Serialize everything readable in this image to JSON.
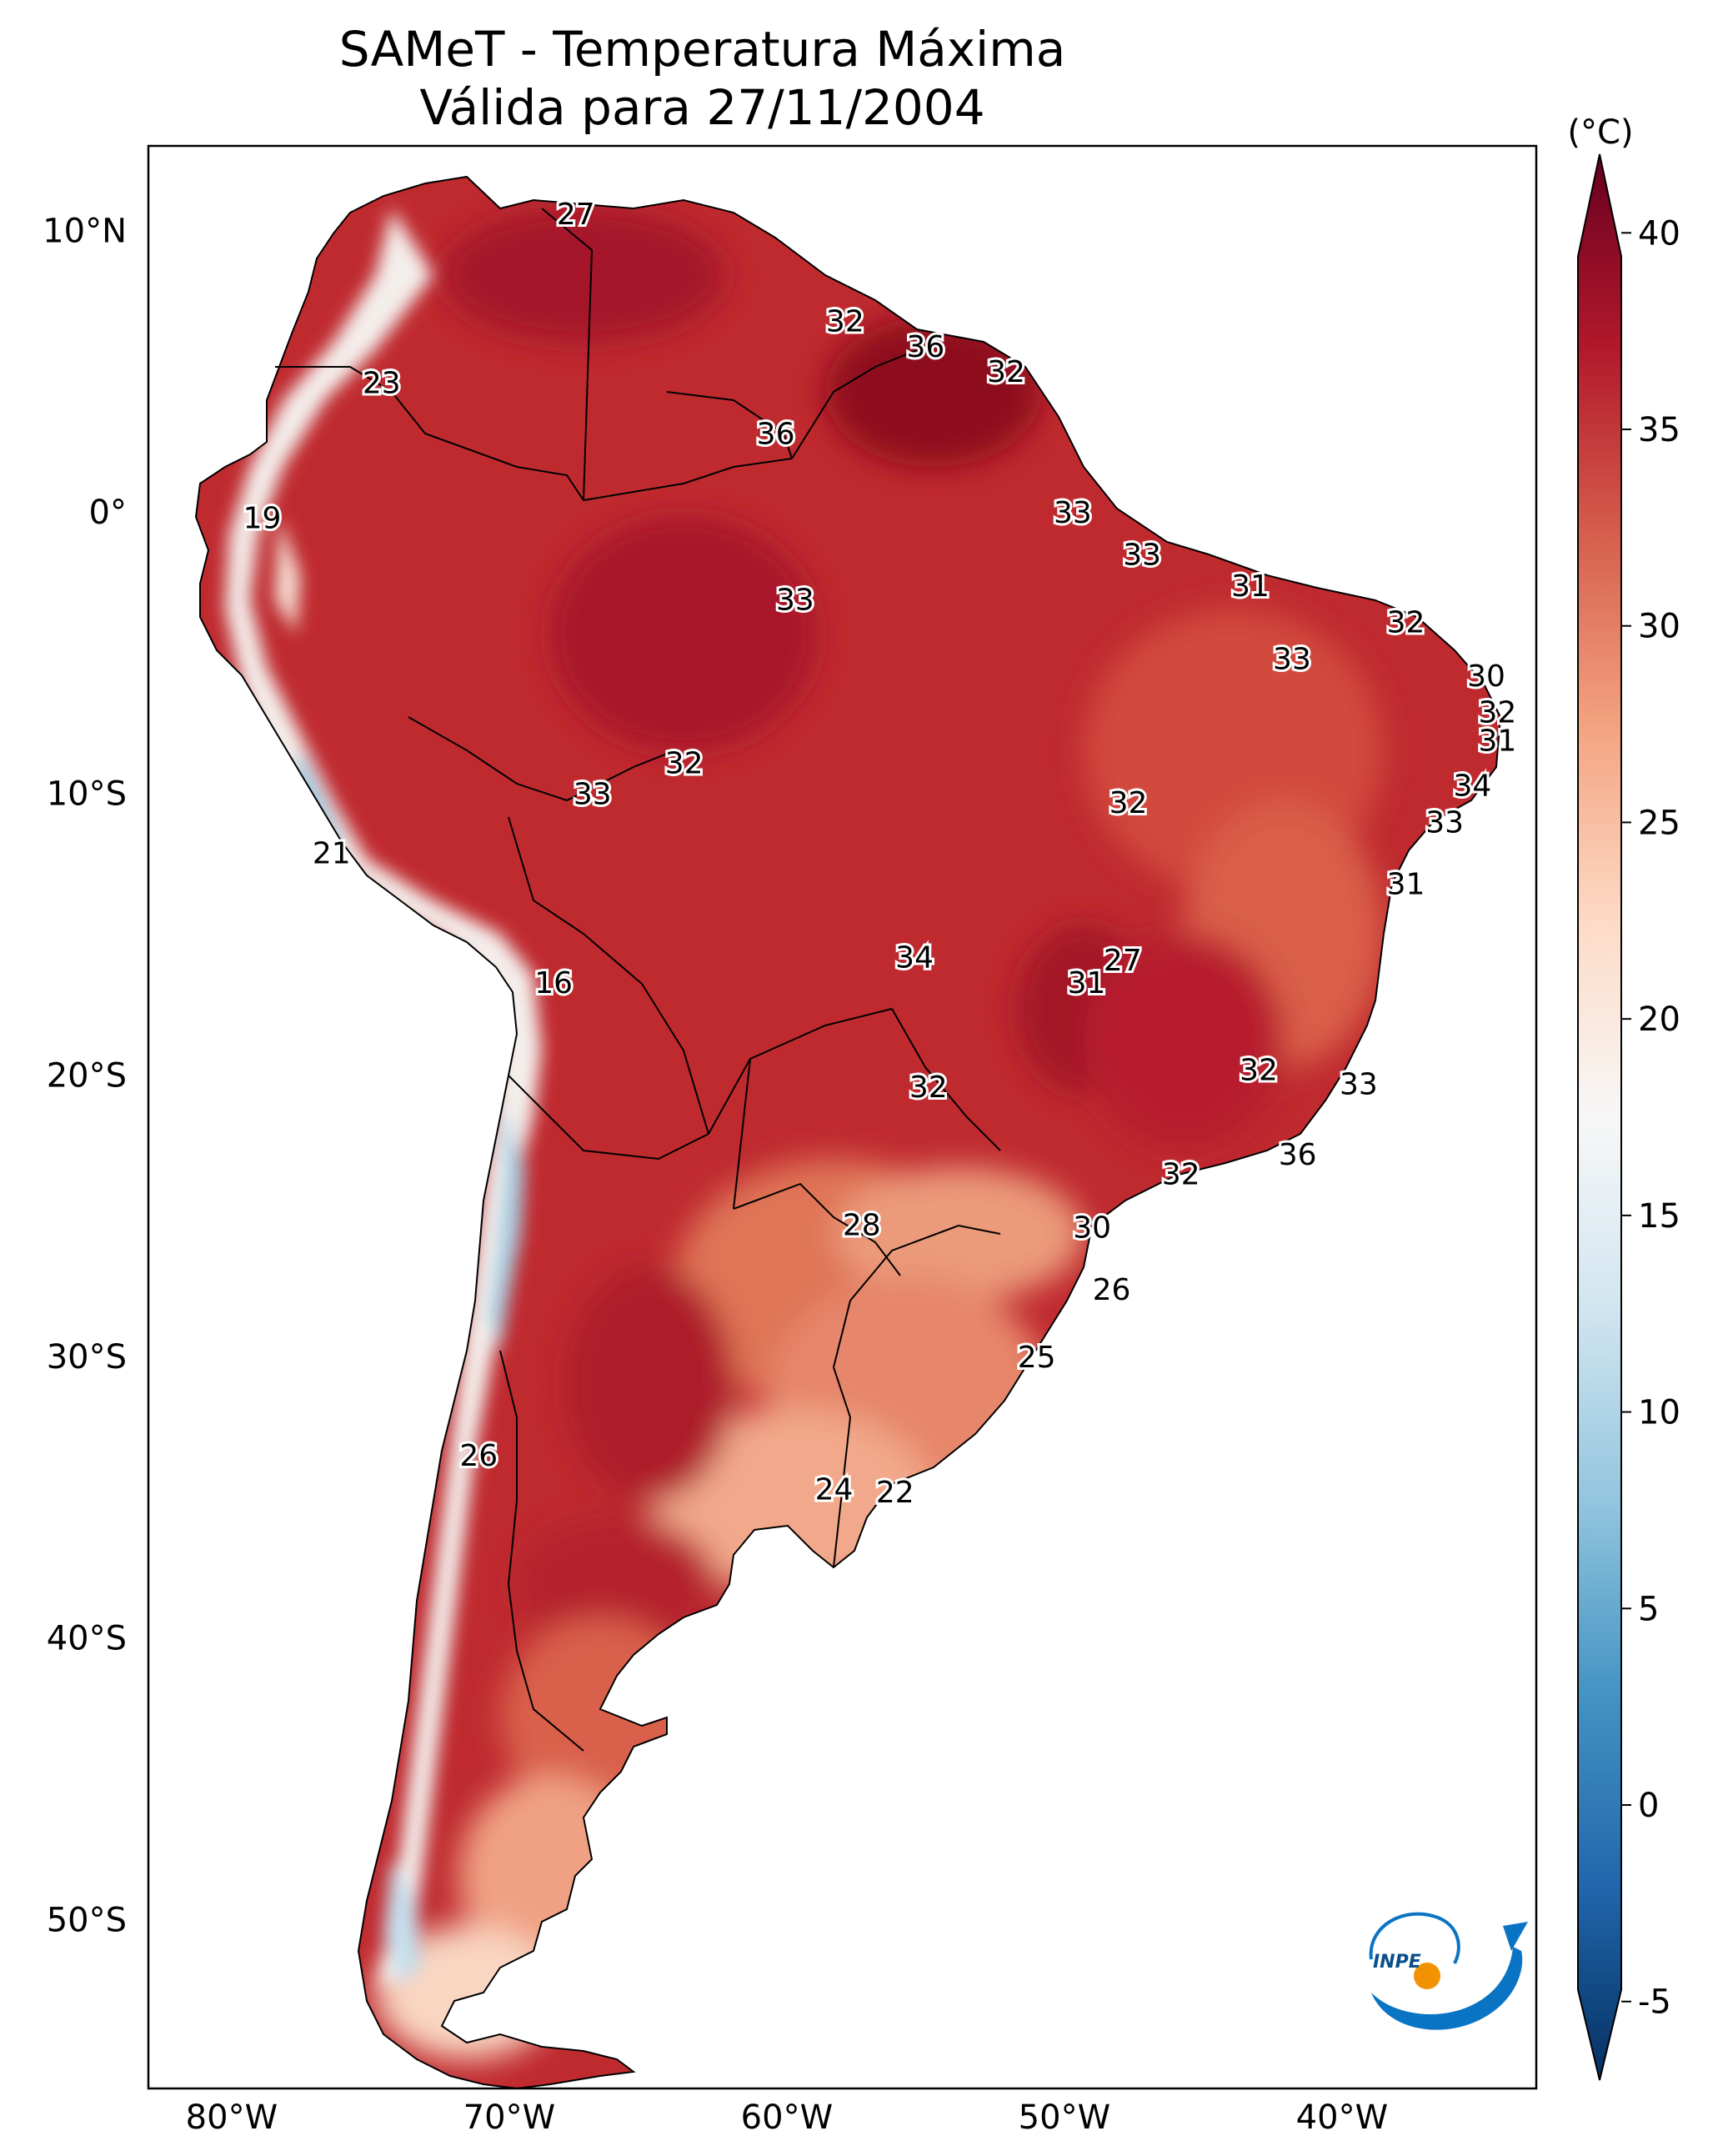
{
  "title": {
    "line1": "SAMeT - Temperatura Máxima",
    "line2": "Válida para 27/11/2004"
  },
  "map": {
    "lat_ticks": [
      "10°N",
      "0°",
      "10°S",
      "20°S",
      "30°S",
      "40°S",
      "50°S"
    ],
    "lon_ticks": [
      "80°W",
      "70°W",
      "60°W",
      "50°W",
      "40°W"
    ],
    "labels": [
      {
        "text": "27",
        "lon": -67.6,
        "lat": 10.6
      },
      {
        "text": "32",
        "lon": -57.9,
        "lat": 6.8
      },
      {
        "text": "36",
        "lon": -55.0,
        "lat": 5.9
      },
      {
        "text": "32",
        "lon": -52.1,
        "lat": 5.0
      },
      {
        "text": "23",
        "lon": -74.6,
        "lat": 4.6
      },
      {
        "text": "36",
        "lon": -60.4,
        "lat": 2.8
      },
      {
        "text": "33",
        "lon": -49.7,
        "lat": 0.0
      },
      {
        "text": "19",
        "lon": -78.9,
        "lat": -0.2
      },
      {
        "text": "33",
        "lon": -47.2,
        "lat": -1.5
      },
      {
        "text": "31",
        "lon": -43.3,
        "lat": -2.6
      },
      {
        "text": "33",
        "lon": -59.7,
        "lat": -3.1
      },
      {
        "text": "32",
        "lon": -37.7,
        "lat": -3.9
      },
      {
        "text": "33",
        "lon": -41.8,
        "lat": -5.2
      },
      {
        "text": "30",
        "lon": -34.8,
        "lat": -5.8
      },
      {
        "text": "32",
        "lon": -34.4,
        "lat": -7.1
      },
      {
        "text": "31",
        "lon": -34.4,
        "lat": -8.1
      },
      {
        "text": "32",
        "lon": -63.7,
        "lat": -8.9
      },
      {
        "text": "34",
        "lon": -35.3,
        "lat": -9.7
      },
      {
        "text": "33",
        "lon": -67.0,
        "lat": -10.0
      },
      {
        "text": "32",
        "lon": -47.7,
        "lat": -10.3
      },
      {
        "text": "33",
        "lon": -36.3,
        "lat": -11.0
      },
      {
        "text": "21",
        "lon": -76.4,
        "lat": -12.1
      },
      {
        "text": "31",
        "lon": -37.7,
        "lat": -13.2
      },
      {
        "text": "34",
        "lon": -55.4,
        "lat": -15.8
      },
      {
        "text": "27",
        "lon": -47.9,
        "lat": -15.9
      },
      {
        "text": "16",
        "lon": -68.4,
        "lat": -16.7
      },
      {
        "text": "31",
        "lon": -49.2,
        "lat": -16.7
      },
      {
        "text": "32",
        "lon": -43.0,
        "lat": -19.8
      },
      {
        "text": "33",
        "lon": -39.4,
        "lat": -20.3
      },
      {
        "text": "32",
        "lon": -54.9,
        "lat": -20.4
      },
      {
        "text": "36",
        "lon": -41.6,
        "lat": -22.8
      },
      {
        "text": "32",
        "lon": -45.8,
        "lat": -23.5
      },
      {
        "text": "28",
        "lon": -57.3,
        "lat": -25.3
      },
      {
        "text": "30",
        "lon": -49.0,
        "lat": -25.4
      },
      {
        "text": "26",
        "lon": -48.3,
        "lat": -27.6
      },
      {
        "text": "25",
        "lon": -51.0,
        "lat": -30.0
      },
      {
        "text": "26",
        "lon": -71.1,
        "lat": -33.5
      },
      {
        "text": "24",
        "lon": -58.3,
        "lat": -34.7
      },
      {
        "text": "22",
        "lon": -56.1,
        "lat": -34.8
      }
    ]
  },
  "colorbar": {
    "unit": "(°C)",
    "min": -7,
    "max": 42,
    "ticks": [
      "40",
      "35",
      "30",
      "25",
      "20",
      "15",
      "10",
      "5",
      "0",
      "-5"
    ],
    "colors": [
      "#053061",
      "#2166ac",
      "#4393c3",
      "#92c5de",
      "#d1e5f0",
      "#f7f7f7",
      "#fddbc7",
      "#f4a582",
      "#d6604d",
      "#b2182b",
      "#67001f"
    ]
  },
  "logo": {
    "text": "INPE",
    "colors": {
      "blue": "#0a74c4",
      "orange": "#f39200"
    }
  }
}
